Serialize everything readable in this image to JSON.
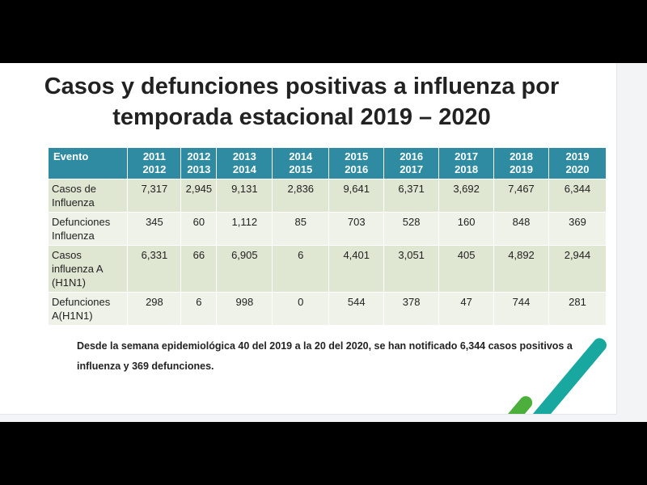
{
  "title": {
    "line1": "Casos y defunciones positivas a influenza por",
    "line2": "temporada estacional 2019 – 2020"
  },
  "table": {
    "headers": [
      {
        "l1": "Evento",
        "l2": ""
      },
      {
        "l1": "2011",
        "l2": "2012"
      },
      {
        "l1": "2012",
        "l2": "2013"
      },
      {
        "l1": "2013",
        "l2": "2014"
      },
      {
        "l1": "2014",
        "l2": "2015"
      },
      {
        "l1": "2015",
        "l2": "2016"
      },
      {
        "l1": "2016",
        "l2": "2017"
      },
      {
        "l1": "2017",
        "l2": "2018"
      },
      {
        "l1": "2018",
        "l2": "2019"
      },
      {
        "l1": "2019",
        "l2": "2020"
      }
    ],
    "rows": [
      {
        "label": [
          "Casos de",
          "Influenza",
          ""
        ],
        "values": [
          "7,317",
          "2,945",
          "9,131",
          "2,836",
          "9,641",
          "6,371",
          "3,692",
          "7,467",
          "6,344"
        ]
      },
      {
        "label": [
          "Defunciones",
          "Influenza",
          ""
        ],
        "values": [
          "345",
          "60",
          "1,112",
          "85",
          "703",
          "528",
          "160",
          "848",
          "369"
        ]
      },
      {
        "label": [
          "Casos",
          "influenza A",
          "(H1N1)"
        ],
        "values": [
          "6,331",
          "66",
          "6,905",
          "6",
          "4,401",
          "3,051",
          "405",
          "4,892",
          "2,944"
        ]
      },
      {
        "label": [
          "Defunciones",
          "A(H1N1)",
          ""
        ],
        "values": [
          "298",
          "6",
          "998",
          "0",
          "544",
          "378",
          "47",
          "744",
          "281"
        ]
      }
    ]
  },
  "note": {
    "line1": "Desde la semana epidemiológica 40 del 2019 a la 20 del 2020, se han notificado 6,344 casos positivos a",
    "line2": "influenza y 369 defunciones."
  },
  "colors": {
    "header": "#2f8ba2",
    "row_odd": "#dfe7d3",
    "row_even": "#eef2e8",
    "accent_green": "#4caf3c",
    "accent_teal": "#19a8a0"
  }
}
